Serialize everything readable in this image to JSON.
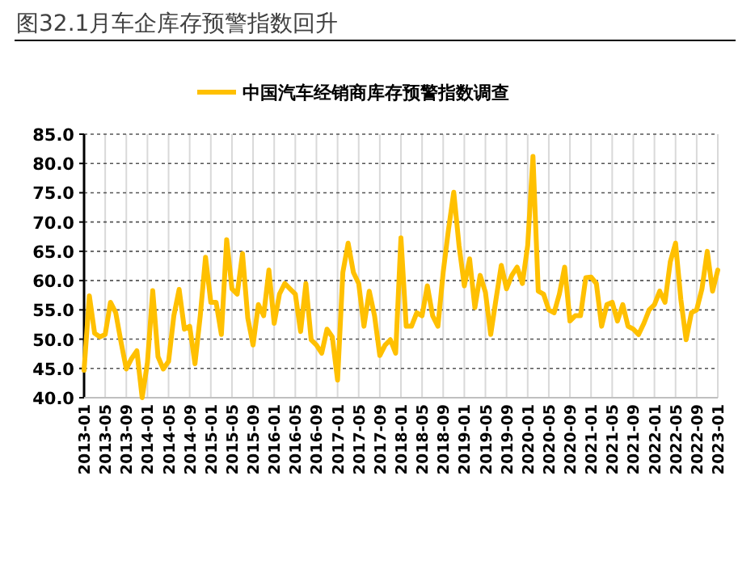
{
  "chart_data": {
    "type": "line",
    "title": "图32.1月车企库存预警指数回升",
    "categories": [
      "2013-01",
      null,
      null,
      null,
      "2013-05",
      null,
      null,
      null,
      "2013-09",
      null,
      null,
      null,
      "2014-01",
      null,
      null,
      null,
      "2014-05",
      null,
      null,
      null,
      "2014-09",
      null,
      null,
      null,
      "2015-01",
      null,
      null,
      null,
      "2015-05",
      null,
      null,
      null,
      "2015-09",
      null,
      null,
      null,
      "2016-01",
      null,
      null,
      null,
      "2016-05",
      null,
      null,
      null,
      "2016-09",
      null,
      null,
      null,
      "2017-01",
      null,
      null,
      null,
      "2017-05",
      null,
      null,
      null,
      "2017-09",
      null,
      null,
      null,
      "2018-01",
      null,
      null,
      null,
      "2018-05",
      null,
      null,
      null,
      "2018-09",
      null,
      null,
      null,
      "2019-01",
      null,
      null,
      null,
      "2019-05",
      null,
      null,
      null,
      "2019-09",
      null,
      null,
      null,
      "2020-01",
      null,
      null,
      null,
      "2020-05",
      null,
      null,
      null,
      "2020-09",
      null,
      null,
      null,
      "2021-01",
      null,
      null,
      null,
      "2021-05",
      null,
      null,
      null,
      "2021-09",
      null,
      null,
      null,
      "2022-01",
      null,
      null,
      null,
      "2022-05",
      null,
      null,
      null,
      "2022-09",
      null,
      null,
      null,
      "2023-01"
    ],
    "series": [
      {
        "name": "中国汽车经销商库存预警指数调查",
        "color": "#ffc000",
        "values": [
          44.7,
          57.4,
          51,
          50.4,
          50.8,
          56.3,
          54.5,
          49.5,
          44.9,
          46.7,
          48,
          40,
          46,
          58.3,
          47,
          44.9,
          46.2,
          54,
          58.5,
          51.7,
          52.2,
          45.8,
          54,
          64,
          56.3,
          56.3,
          50.8,
          67,
          58.6,
          57.7,
          64.6,
          53.6,
          49,
          55.9,
          54,
          61.8,
          52.7,
          57.7,
          59.5,
          58.6,
          57.7,
          51.3,
          59.5,
          49.9,
          49,
          47.6,
          51.7,
          50.4,
          43,
          61.4,
          66.4,
          61.4,
          59.5,
          52.2,
          58.2,
          54,
          47.2,
          49,
          49.9,
          47.6,
          67.3,
          52.2,
          52.2,
          54.5,
          54,
          59.1,
          54,
          52.2,
          61.4,
          68.7,
          75.1,
          66,
          59.1,
          63.7,
          55.4,
          60.9,
          58,
          50.8,
          56.8,
          62.6,
          58.6,
          60.9,
          62.3,
          59.5,
          66,
          81.2,
          58.2,
          57.7,
          55,
          54.5,
          57.7,
          62.3,
          53.1,
          54,
          54,
          60.5,
          60.6,
          59.5,
          52.2,
          55.9,
          56.3,
          53.1,
          55.9,
          52.2,
          51.7,
          50.8,
          52.7,
          55,
          55.9,
          58.2,
          56.3,
          63.2,
          66.4,
          56.8,
          49.9,
          54.5,
          55,
          58.6,
          65,
          58.2,
          61.8
        ]
      }
    ],
    "ylim": [
      40,
      85
    ],
    "yticks": [
      {
        "value": 40,
        "label": "40.0"
      },
      {
        "value": 45,
        "label": "45.0"
      },
      {
        "value": 50,
        "label": "50.0"
      },
      {
        "value": 55,
        "label": "55.0"
      },
      {
        "value": 60,
        "label": "60.0"
      },
      {
        "value": 65,
        "label": "65.0"
      },
      {
        "value": 70,
        "label": "70.0"
      },
      {
        "value": 75,
        "label": "75.0"
      },
      {
        "value": 80,
        "label": "80.0"
      },
      {
        "value": 85,
        "label": "85.0"
      }
    ],
    "grid": true,
    "legend": "top",
    "line_style": "solid",
    "marker": "none"
  }
}
